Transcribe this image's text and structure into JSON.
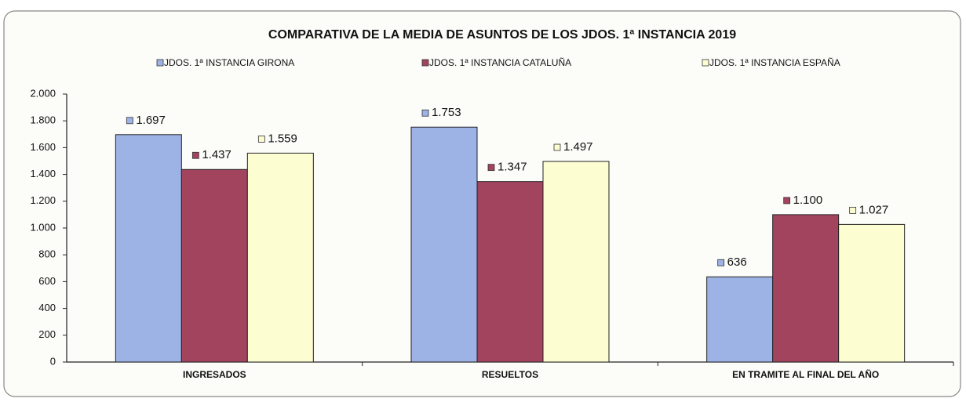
{
  "chart_data": {
    "type": "bar",
    "title": "COMPARATIVA DE LA MEDIA DE ASUNTOS DE LOS JDOS. 1ª INSTANCIA  2019",
    "categories": [
      "INGRESADOS",
      "RESUELTOS",
      "EN TRAMITE AL FINAL DEL AÑO"
    ],
    "series": [
      {
        "name": "JDOS. 1ª INSTANCIA  GIRONA",
        "color": "#9db3e6",
        "values": [
          1697,
          1753,
          636
        ],
        "value_labels": [
          "1.697",
          "1.753",
          "636"
        ]
      },
      {
        "name": "JDOS. 1ª INSTANCIA  CATALUÑA",
        "color": "#a3445f",
        "values": [
          1437,
          1347,
          1100
        ],
        "value_labels": [
          "1.437",
          "1.347",
          "1.100"
        ]
      },
      {
        "name": "JDOS. 1ª INSTANCIA  ESPAÑA",
        "color": "#fdfdd2",
        "values": [
          1559,
          1497,
          1027
        ],
        "value_labels": [
          "1.559",
          "1.497",
          "1.027"
        ]
      }
    ],
    "ylim": [
      0,
      2000
    ],
    "yticks": [
      0,
      200,
      400,
      600,
      800,
      {
        "value": 1000,
        "label": "1.000"
      },
      {
        "value": 1200,
        "label": "1.200"
      },
      {
        "value": 1400,
        "label": "1.400"
      },
      {
        "value": 1600,
        "label": "1.600"
      },
      {
        "value": 1800,
        "label": "1.800"
      },
      {
        "value": 2000,
        "label": "2.000"
      }
    ],
    "grid": false,
    "legend": "top"
  }
}
